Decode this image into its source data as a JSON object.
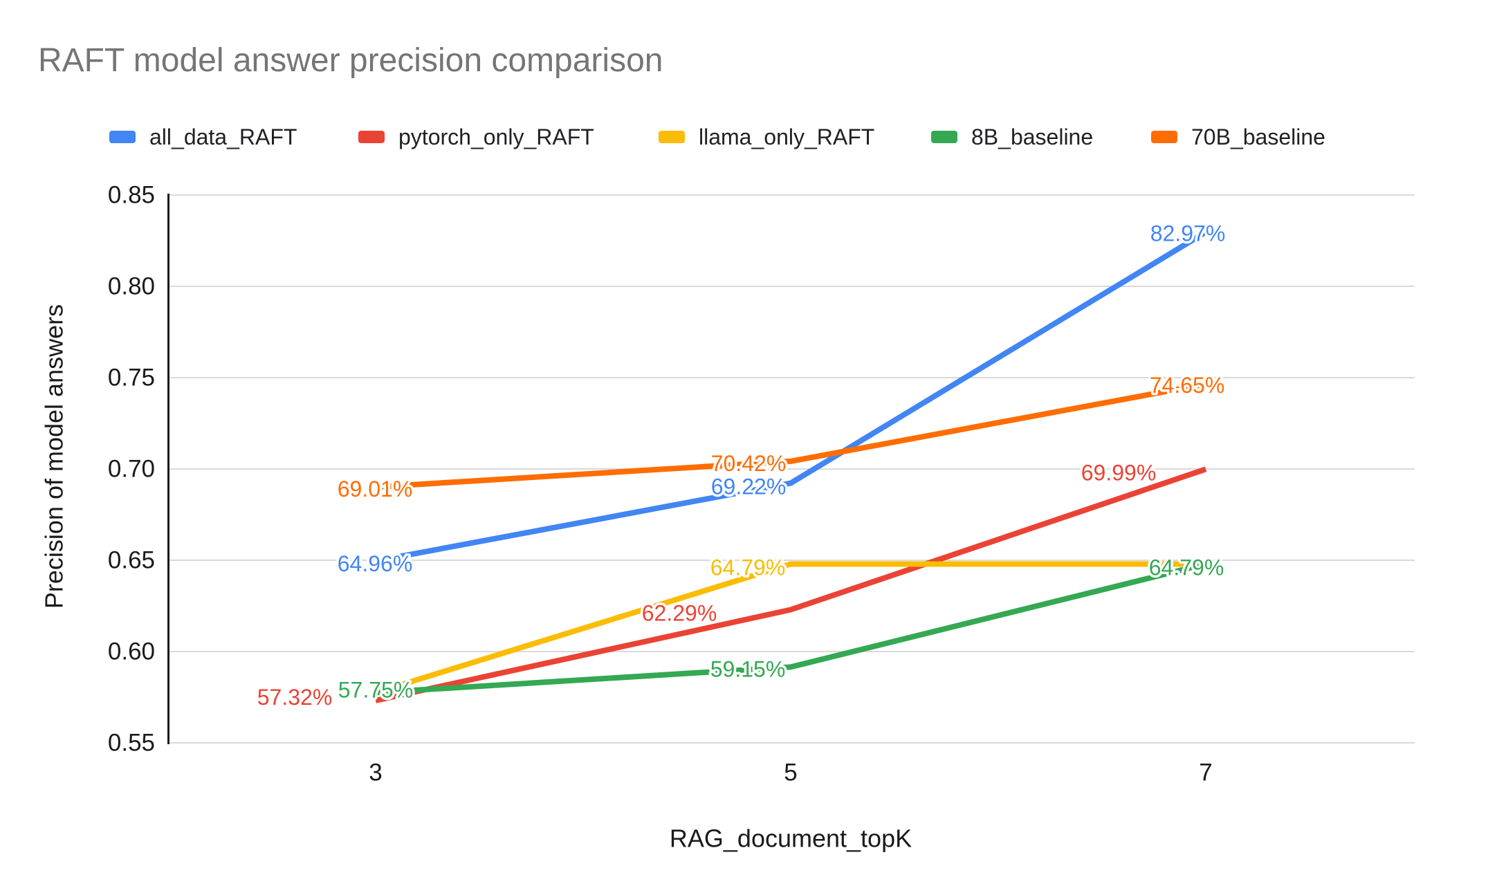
{
  "chart_data": {
    "type": "line",
    "title": "RAFT model answer precision comparison",
    "xlabel": "RAG_document_topK",
    "ylabel": "Precision of model answers",
    "x_categories": [
      "3",
      "5",
      "7"
    ],
    "y_ticks": [
      "0.55",
      "0.60",
      "0.65",
      "0.70",
      "0.75",
      "0.80",
      "0.85"
    ],
    "ylim": [
      0.55,
      0.85
    ],
    "grid": true,
    "legend_position": "top",
    "series": [
      {
        "name": "all_data_RAFT",
        "color": "#4285F4",
        "values": [
          64.96,
          69.22,
          82.97
        ],
        "labels": [
          "64.96%",
          "69.22%",
          "82.97%"
        ]
      },
      {
        "name": "pytorch_only_RAFT",
        "color": "#EA4335",
        "values": [
          57.32,
          62.29,
          69.99
        ],
        "labels": [
          "57.32%",
          "62.29%",
          "69.99%"
        ]
      },
      {
        "name": "llama_only_RAFT",
        "color": "#FBBC04",
        "values": [
          57.75,
          64.79,
          64.79
        ],
        "labels": [
          "",
          "64.79%",
          ""
        ]
      },
      {
        "name": "8B_baseline",
        "color": "#34A853",
        "values": [
          57.75,
          59.15,
          64.79
        ],
        "labels": [
          "57.75%",
          "59.15%",
          "64.79%"
        ]
      },
      {
        "name": "70B_baseline",
        "color": "#FF6D01",
        "values": [
          69.01,
          70.42,
          74.65
        ],
        "labels": [
          "69.01%",
          "70.42%",
          "74.65%"
        ]
      }
    ]
  }
}
